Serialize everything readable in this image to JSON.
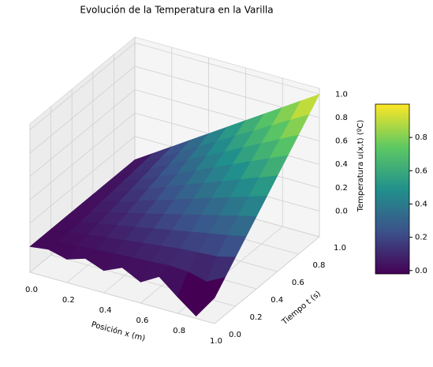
{
  "chart_data": {
    "type": "surface3d",
    "title": "Evolución de la Temperatura en la Varilla",
    "xlabel": "Posición x (m)",
    "ylabel": "Tiempo t (s)",
    "zlabel": "Temperatura u(x,t) (ºC)",
    "x": [
      0,
      0.1,
      0.2,
      0.3,
      0.4,
      0.5,
      0.6,
      0.7,
      0.8,
      0.9,
      1
    ],
    "y": [
      0,
      0.1,
      0.2,
      0.3,
      0.4,
      0.5,
      0.6,
      0.7,
      0.8,
      0.9,
      1
    ],
    "z": [
      [
        0,
        0.02,
        -0.02,
        0.03,
        -0.03,
        0.04,
        -0.04,
        0.05,
        -0.08,
        -0.2,
        0
      ],
      [
        0,
        0.01,
        0.02,
        0.03,
        0.04,
        0.05,
        0.06,
        0.07,
        0.06,
        0.02,
        0.1
      ],
      [
        0,
        0.02,
        0.04,
        0.06,
        0.08,
        0.1,
        0.12,
        0.14,
        0.15,
        0.16,
        0.2
      ],
      [
        0,
        0.03,
        0.06,
        0.09,
        0.12,
        0.15,
        0.18,
        0.21,
        0.24,
        0.27,
        0.3
      ],
      [
        0,
        0.04,
        0.08,
        0.12,
        0.16,
        0.2,
        0.24,
        0.28,
        0.32,
        0.36,
        0.4
      ],
      [
        0,
        0.05,
        0.1,
        0.15,
        0.2,
        0.25,
        0.3,
        0.35,
        0.4,
        0.45,
        0.5
      ],
      [
        0,
        0.06,
        0.12,
        0.18,
        0.24,
        0.3,
        0.36,
        0.42,
        0.48,
        0.54,
        0.6
      ],
      [
        0,
        0.07,
        0.14,
        0.21,
        0.28,
        0.35,
        0.42,
        0.49,
        0.56,
        0.63,
        0.7
      ],
      [
        0,
        0.08,
        0.16,
        0.24,
        0.32,
        0.4,
        0.48,
        0.56,
        0.64,
        0.72,
        0.8
      ],
      [
        0,
        0.09,
        0.18,
        0.27,
        0.36,
        0.45,
        0.54,
        0.63,
        0.72,
        0.81,
        0.9
      ],
      [
        0,
        0.1,
        0.2,
        0.3,
        0.4,
        0.5,
        0.6,
        0.7,
        0.8,
        0.9,
        1
      ]
    ],
    "xlim": [
      0,
      1
    ],
    "ylim": [
      0,
      1
    ],
    "zlim": [
      -0.22,
      1.05
    ],
    "xticks": [
      {
        "value": 0,
        "label": "0.0"
      },
      {
        "value": 0.2,
        "label": "0.2"
      },
      {
        "value": 0.4,
        "label": "0.4"
      },
      {
        "value": 0.6,
        "label": "0.6"
      },
      {
        "value": 0.8,
        "label": "0.8"
      },
      {
        "value": 1,
        "label": "1.0"
      }
    ],
    "yticks": [
      {
        "value": 0,
        "label": "0.0"
      },
      {
        "value": 0.2,
        "label": "0.2"
      },
      {
        "value": 0.4,
        "label": "0.4"
      },
      {
        "value": 0.6,
        "label": "0.6"
      },
      {
        "value": 0.8,
        "label": "0.8"
      },
      {
        "value": 1,
        "label": "1.0"
      }
    ],
    "zticks": [
      {
        "value": 0,
        "label": "0.0"
      },
      {
        "value": 0.2,
        "label": "0.2"
      },
      {
        "value": 0.4,
        "label": "0.4"
      },
      {
        "value": 0.6,
        "label": "0.6"
      },
      {
        "value": 0.8,
        "label": "0.8"
      },
      {
        "value": 1,
        "label": "1.0"
      }
    ],
    "colormap": [
      "#440154",
      "#3b528b",
      "#21918c",
      "#5ec962",
      "#fde725"
    ],
    "clim": [
      -0.02,
      1.0
    ],
    "cticks": [
      {
        "value": 0,
        "label": "0.0"
      },
      {
        "value": 0.2,
        "label": "0.2"
      },
      {
        "value": 0.4,
        "label": "0.4"
      },
      {
        "value": 0.6,
        "label": "0.6"
      },
      {
        "value": 0.8,
        "label": "0.8"
      }
    ],
    "grid": true
  }
}
